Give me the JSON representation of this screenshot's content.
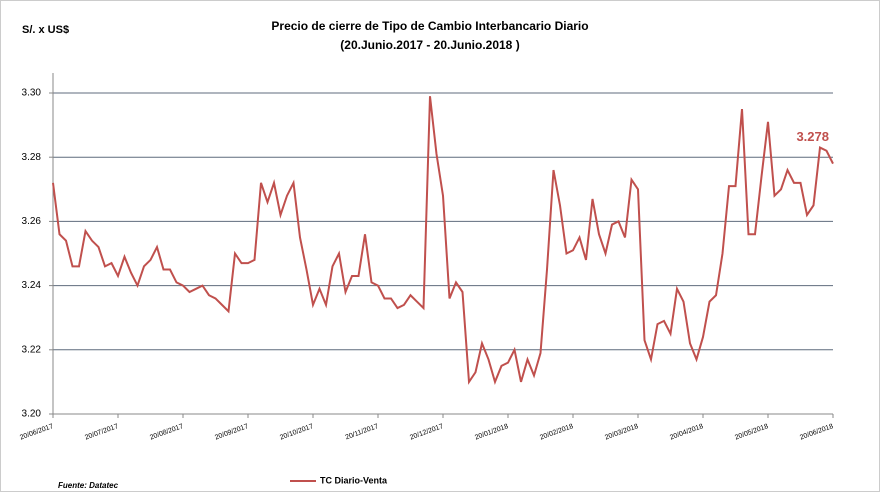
{
  "chart_data": {
    "type": "line",
    "title": "Precio de cierre de Tipo de Cambio Interbancario Diario",
    "subtitle": "(20.Junio.2017  -  20.Junio.2018 )",
    "y_label": "S/. x US$",
    "source": "Fuente: Datatec",
    "categories": [
      "20/06/2017",
      null,
      null,
      null,
      null,
      null,
      null,
      null,
      null,
      null,
      "20/07/2017",
      null,
      null,
      null,
      null,
      null,
      null,
      null,
      null,
      null,
      "20/08/2017",
      null,
      null,
      null,
      null,
      null,
      null,
      null,
      null,
      null,
      "20/09/2017",
      null,
      null,
      null,
      null,
      null,
      null,
      null,
      null,
      null,
      "20/10/2017",
      null,
      null,
      null,
      null,
      null,
      null,
      null,
      null,
      null,
      "20/11/2017",
      null,
      null,
      null,
      null,
      null,
      null,
      null,
      null,
      null,
      "20/12/2017",
      null,
      null,
      null,
      null,
      null,
      null,
      null,
      null,
      null,
      "20/01/2018",
      null,
      null,
      null,
      null,
      null,
      null,
      null,
      null,
      null,
      "20/02/2018",
      null,
      null,
      null,
      null,
      null,
      null,
      null,
      null,
      null,
      "20/03/2018",
      null,
      null,
      null,
      null,
      null,
      null,
      null,
      null,
      null,
      "20/04/2018",
      null,
      null,
      null,
      null,
      null,
      null,
      null,
      null,
      null,
      "20/05/2018",
      null,
      null,
      null,
      null,
      null,
      null,
      null,
      null,
      null,
      "20/06/2018"
    ],
    "series": [
      {
        "name": "TC Diario-Venta",
        "color": "#c0504d",
        "values": [
          3.272,
          3.256,
          3.254,
          3.246,
          3.246,
          3.257,
          3.254,
          3.252,
          3.246,
          3.247,
          3.243,
          3.249,
          3.244,
          3.24,
          3.246,
          3.248,
          3.252,
          3.245,
          3.245,
          3.241,
          3.24,
          3.238,
          3.239,
          3.24,
          3.237,
          3.236,
          3.234,
          3.232,
          3.25,
          3.247,
          3.247,
          3.248,
          3.272,
          3.266,
          3.272,
          3.262,
          3.268,
          3.272,
          3.255,
          3.245,
          3.234,
          3.239,
          3.234,
          3.246,
          3.25,
          3.238,
          3.243,
          3.243,
          3.256,
          3.241,
          3.24,
          3.236,
          3.236,
          3.233,
          3.234,
          3.237,
          3.235,
          3.233,
          3.299,
          3.281,
          3.268,
          3.236,
          3.241,
          3.238,
          3.21,
          3.213,
          3.222,
          3.217,
          3.21,
          3.215,
          3.216,
          3.22,
          3.21,
          3.217,
          3.212,
          3.219,
          3.245,
          3.276,
          3.265,
          3.25,
          3.251,
          3.255,
          3.248,
          3.267,
          3.256,
          3.25,
          3.259,
          3.26,
          3.255,
          3.273,
          3.27,
          3.223,
          3.217,
          3.228,
          3.229,
          3.225,
          3.239,
          3.235,
          3.222,
          3.217,
          3.224,
          3.235,
          3.237,
          3.25,
          3.271,
          3.271,
          3.295,
          3.256,
          3.256,
          3.274,
          3.291,
          3.268,
          3.27,
          3.276,
          3.272,
          3.272,
          3.262,
          3.265,
          3.283,
          3.282,
          3.278
        ]
      }
    ],
    "ylim": [
      3.2,
      3.3
    ],
    "yticks": [
      {
        "value": 3.2,
        "label": "3.20"
      },
      {
        "value": 3.22,
        "label": "3.22"
      },
      {
        "value": 3.24,
        "label": "3.24"
      },
      {
        "value": 3.26,
        "label": "3.26"
      },
      {
        "value": 3.28,
        "label": "3.28"
      },
      {
        "value": 3.3,
        "label": "3.30"
      }
    ],
    "grid": true,
    "legend": "bottom"
  }
}
